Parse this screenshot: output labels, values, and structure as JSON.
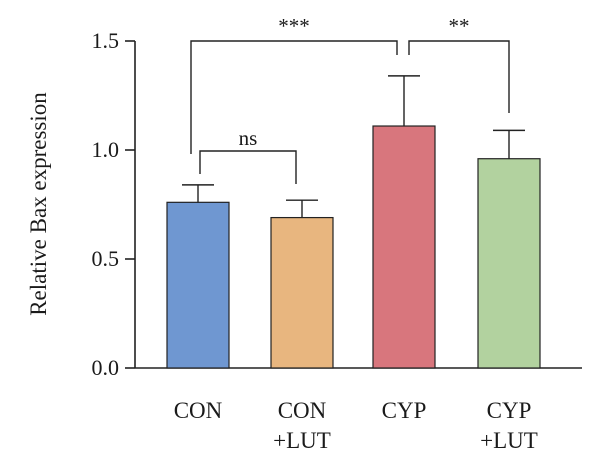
{
  "chart_data": {
    "type": "bar",
    "title": "",
    "xlabel": "",
    "ylabel": "Relative Bax expression",
    "ylim": [
      0,
      1.5
    ],
    "yticks": [
      "0.0",
      "0.5",
      "1.0",
      "1.5"
    ],
    "ytick_values": [
      0,
      0.5,
      1.0,
      1.5
    ],
    "categories": [
      [
        "CON"
      ],
      [
        "CON",
        "+LUT"
      ],
      [
        "CYP"
      ],
      [
        "CYP",
        "+LUT"
      ]
    ],
    "values": [
      0.76,
      0.69,
      1.11,
      0.96
    ],
    "errors": [
      0.08,
      0.08,
      0.23,
      0.13
    ],
    "colors": [
      "#6f97d1",
      "#e8b67f",
      "#d8767d",
      "#b2d29f"
    ],
    "grid": false,
    "significance": [
      {
        "from": 0,
        "to": 1,
        "label": "ns"
      },
      {
        "from": 0,
        "to": 2,
        "label": "***"
      },
      {
        "from": 2,
        "to": 3,
        "label": "**"
      }
    ]
  }
}
